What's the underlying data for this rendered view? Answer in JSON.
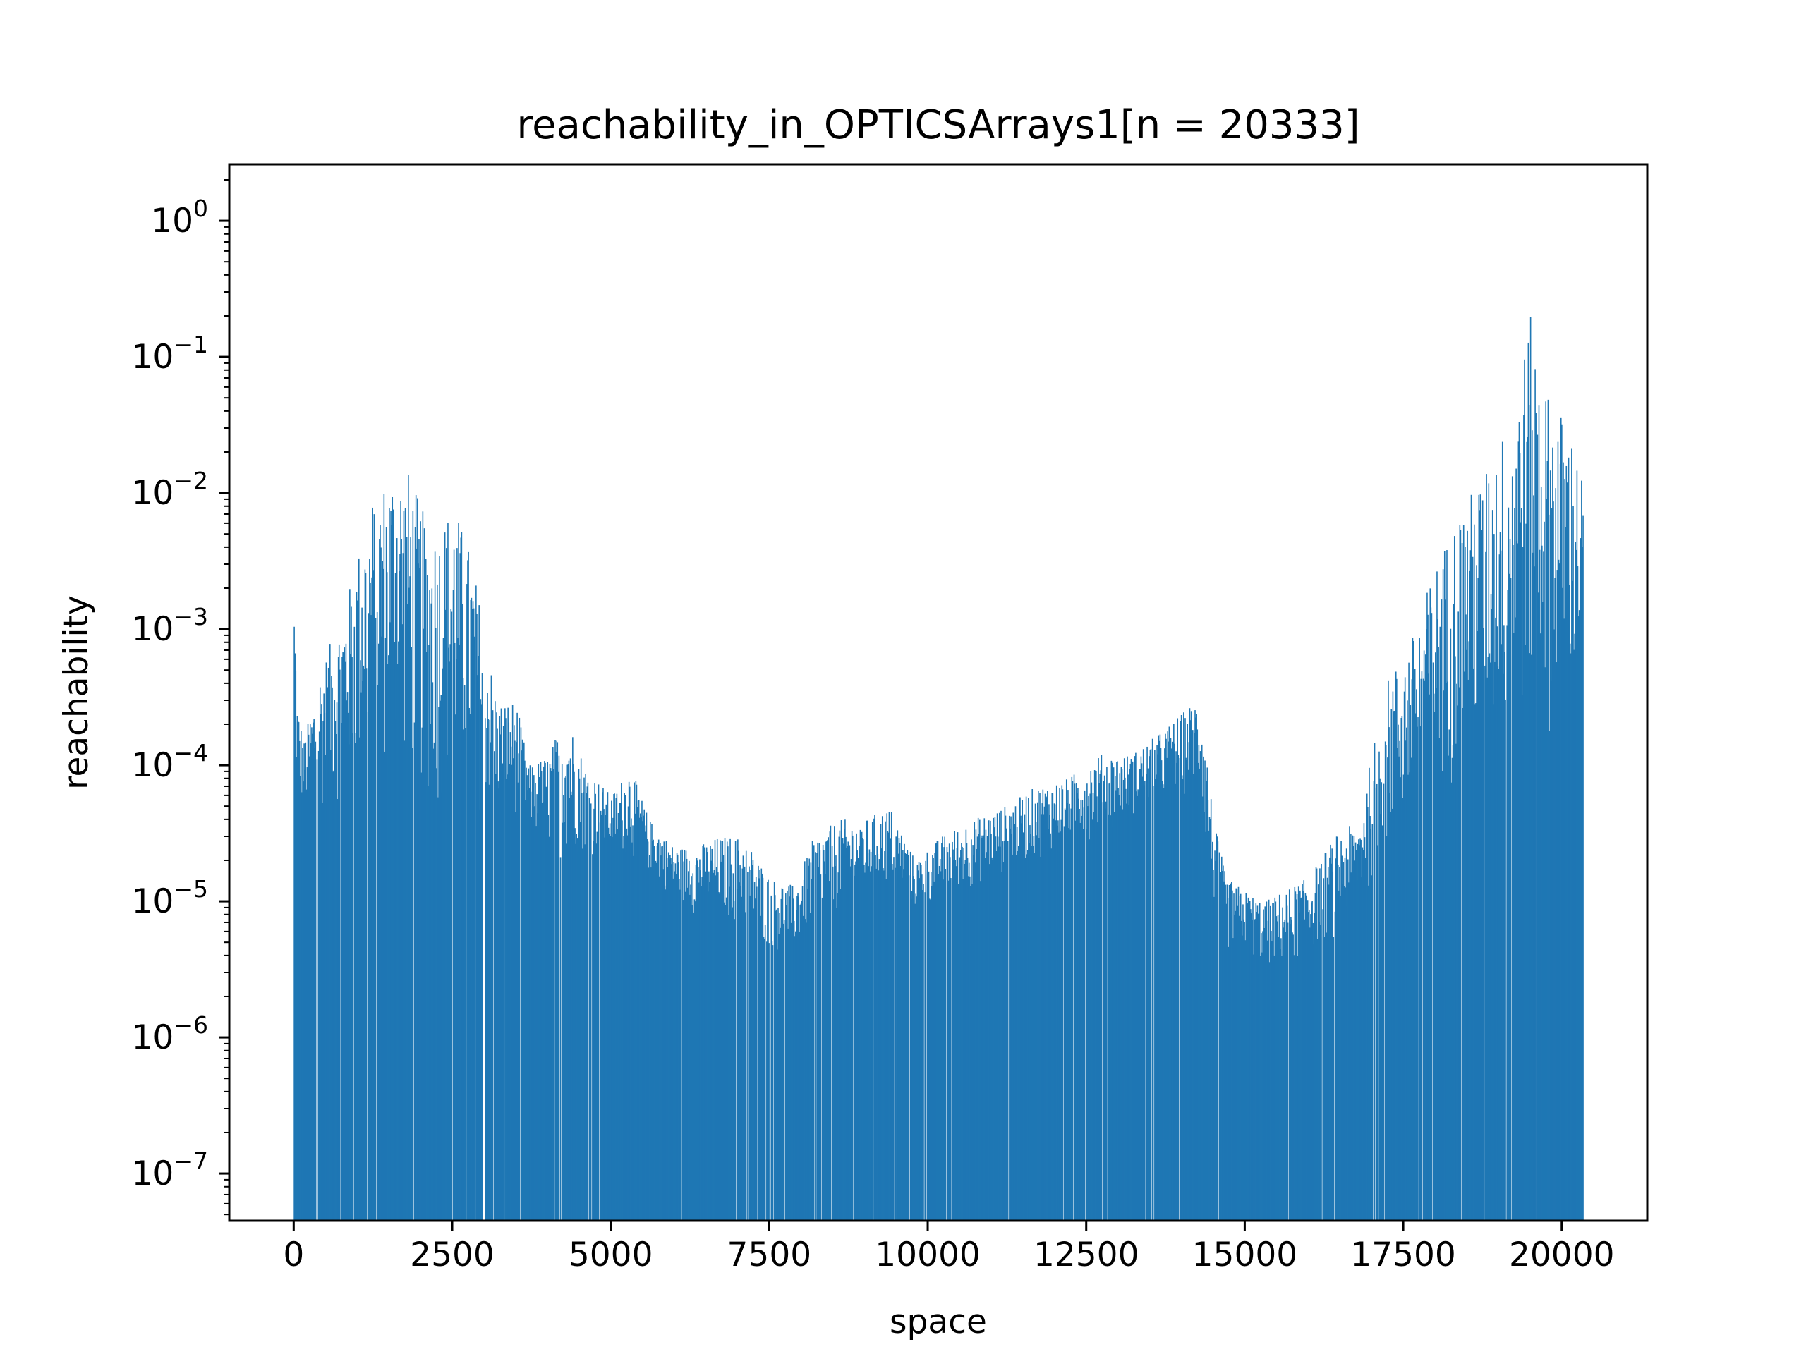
{
  "chart_data": {
    "type": "bar",
    "title": "reachability_in_OPTICSArrays1[n = 20333]",
    "xlabel": "space",
    "ylabel": "reachability",
    "n": 20333,
    "xlim": [
      -1016,
      21349
    ],
    "ylim": [
      4.5e-08,
      2.6
    ],
    "yscale": "log",
    "x_ticks": [
      0,
      2500,
      5000,
      7500,
      10000,
      12500,
      15000,
      17500,
      20000
    ],
    "x_tick_labels": [
      "0",
      "2500",
      "5000",
      "7500",
      "10000",
      "12500",
      "15000",
      "17500",
      "20000"
    ],
    "y_ticks": [
      {
        "value": 1.0,
        "base": "10",
        "exp": "0"
      },
      {
        "value": 0.1,
        "base": "10",
        "exp": "−1"
      },
      {
        "value": 0.01,
        "base": "10",
        "exp": "−2"
      },
      {
        "value": 0.001,
        "base": "10",
        "exp": "−3"
      },
      {
        "value": 0.0001,
        "base": "10",
        "exp": "−4"
      },
      {
        "value": 1e-05,
        "base": "10",
        "exp": "−5"
      },
      {
        "value": 1e-06,
        "base": "10",
        "exp": "−6"
      },
      {
        "value": 1e-07,
        "base": "10",
        "exp": "−7"
      }
    ],
    "bar_color": "#1f77b4",
    "grid": false,
    "legend": "none",
    "envelope": {
      "x": [
        0,
        50,
        150,
        400,
        800,
        1200,
        1600,
        1800,
        2100,
        2300,
        2500,
        2800,
        3200,
        3500,
        3700,
        4000,
        4300,
        4600,
        5000,
        5300,
        5600,
        6000,
        6300,
        6700,
        7100,
        7500,
        7900,
        8200,
        8600,
        9000,
        9400,
        9800,
        10200,
        10700,
        11200,
        11700,
        12200,
        12700,
        13200,
        13700,
        14200,
        14300,
        14500,
        14700,
        15000,
        15300,
        15600,
        16000,
        16400,
        16800,
        17200,
        17600,
        18000,
        18400,
        18800,
        19200,
        19500,
        19800,
        20100,
        20333
      ],
      "upper": [
        0.0025,
        0.0003,
        0.00015,
        0.0005,
        0.0015,
        0.009,
        0.018,
        0.015,
        0.006,
        0.006,
        0.009,
        0.0035,
        0.0003,
        0.0003,
        0.0001,
        0.00012,
        0.00025,
        0.0001,
        6e-05,
        0.0001,
        4e-05,
        2.5e-05,
        2.5e-05,
        3e-05,
        3e-05,
        1.5e-05,
        1.3e-05,
        3e-05,
        4e-05,
        4e-05,
        5e-05,
        2e-05,
        3e-05,
        4e-05,
        5e-05,
        7e-05,
        8e-05,
        0.00012,
        0.00012,
        0.00018,
        0.0003,
        0.00035,
        4e-05,
        1.5e-05,
        1.2e-05,
        1e-05,
        1.2e-05,
        1.5e-05,
        3e-05,
        4e-05,
        0.0004,
        0.0008,
        0.003,
        0.008,
        0.015,
        0.04,
        0.2,
        0.05,
        0.035,
        0.012
      ],
      "lower": [
        5e-05,
        5e-05,
        4e-05,
        4e-05,
        5e-05,
        6e-05,
        8e-05,
        6e-05,
        4e-05,
        4e-05,
        5e-05,
        4e-05,
        4e-05,
        4e-05,
        3e-05,
        2e-05,
        2e-05,
        2e-05,
        2e-05,
        2e-05,
        1.5e-05,
        1e-05,
        8e-06,
        7e-06,
        6e-06,
        4e-06,
        4e-06,
        6e-06,
        8e-06,
        1e-05,
        1.2e-05,
        8e-06,
        1e-05,
        1.2e-05,
        1.5e-05,
        2e-05,
        2.5e-05,
        3e-05,
        4e-05,
        5e-05,
        6e-05,
        4e-05,
        8e-06,
        4e-06,
        4e-06,
        3e-06,
        3e-06,
        4e-06,
        5e-06,
        8e-06,
        2e-05,
        3e-05,
        5e-05,
        8e-05,
        0.0001,
        0.00012,
        0.00015,
        0.00015,
        0.0002,
        0.0003
      ]
    }
  }
}
